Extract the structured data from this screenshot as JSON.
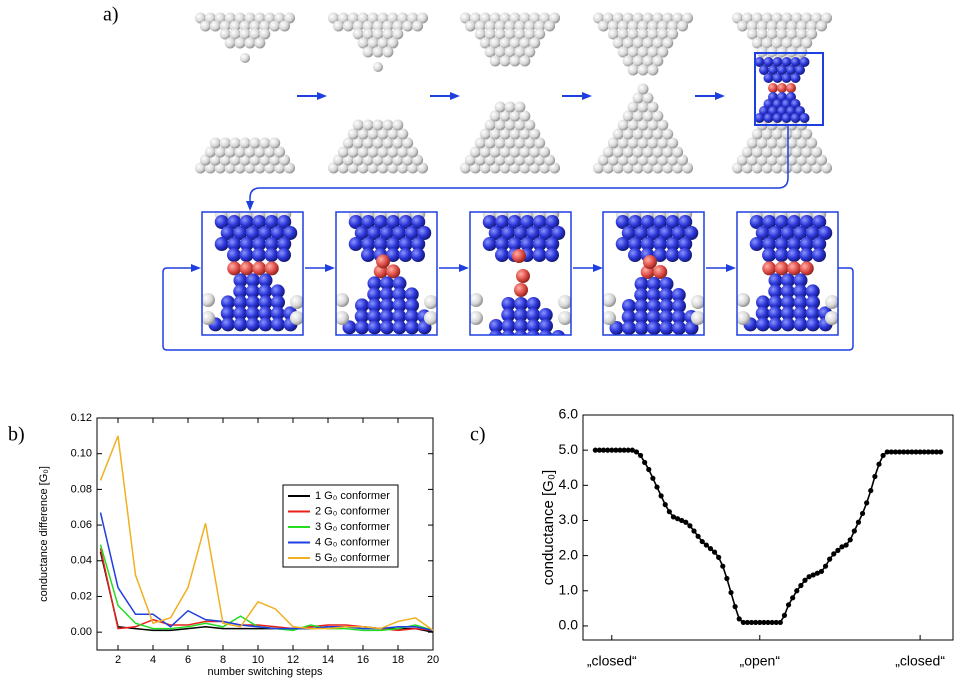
{
  "panel_labels": [
    "a)",
    "b)",
    "c)"
  ],
  "chart_data": [
    {
      "type": "line",
      "xlabel": "number switching steps",
      "ylabel": "conductance difference [G₀]",
      "x": [
        1,
        2,
        3,
        4,
        5,
        6,
        7,
        8,
        9,
        10,
        11,
        12,
        13,
        14,
        15,
        16,
        17,
        18,
        19,
        20
      ],
      "xlim": [
        0.8,
        20
      ],
      "xticks": [
        2,
        4,
        6,
        8,
        10,
        12,
        14,
        16,
        18,
        20
      ],
      "ylim": [
        -0.01,
        0.12
      ],
      "yticks": [
        {
          "value": 0,
          "label": "0.00"
        },
        {
          "value": 0.02,
          "label": "0.02"
        },
        {
          "value": 0.04,
          "label": "0.04"
        },
        {
          "value": 0.06,
          "label": "0.06"
        },
        {
          "value": 0.08,
          "label": "0.08"
        },
        {
          "value": 0.1,
          "label": "0.10"
        },
        {
          "value": 0.12,
          "label": "0.12"
        }
      ],
      "legend": "upper right",
      "series": [
        {
          "name": "1 G₀ conformer",
          "color": "#000000",
          "values": [
            0.045,
            0.003,
            0.002,
            0.001,
            0.001,
            0.002,
            0.003,
            0.002,
            0.002,
            0.002,
            0.002,
            0.002,
            0.002,
            0.003,
            0.003,
            0.003,
            0.002,
            0.002,
            0.002,
            0.0
          ]
        },
        {
          "name": "2 G₀ conformer",
          "color": "#e8201a",
          "values": [
            0.047,
            0.002,
            0.003,
            0.007,
            0.004,
            0.004,
            0.006,
            0.006,
            0.004,
            0.004,
            0.003,
            0.002,
            0.003,
            0.004,
            0.004,
            0.003,
            0.002,
            0.001,
            0.002,
            0.001
          ]
        },
        {
          "name": "3 G₀ conformer",
          "color": "#22dd22",
          "values": [
            0.049,
            0.015,
            0.005,
            0.002,
            0.002,
            0.003,
            0.005,
            0.003,
            0.009,
            0.003,
            0.002,
            0.001,
            0.004,
            0.002,
            0.002,
            0.001,
            0.001,
            0.002,
            0.004,
            0.001
          ]
        },
        {
          "name": "4 G₀ conformer",
          "color": "#1f3fe0",
          "values": [
            0.067,
            0.025,
            0.01,
            0.01,
            0.003,
            0.012,
            0.007,
            0.006,
            0.004,
            0.003,
            0.002,
            0.002,
            0.002,
            0.003,
            0.003,
            0.002,
            0.002,
            0.003,
            0.003,
            0.001
          ]
        },
        {
          "name": "5 G₀ conformer",
          "color": "#f0b020",
          "values": [
            0.085,
            0.11,
            0.032,
            0.005,
            0.008,
            0.025,
            0.061,
            0.005,
            0.003,
            0.017,
            0.013,
            0.003,
            0.002,
            0.002,
            0.003,
            0.003,
            0.002,
            0.006,
            0.008,
            0.001
          ]
        }
      ]
    },
    {
      "type": "line",
      "ylabel": "conductance [G₀]",
      "markers": true,
      "color": "#000000",
      "xlim": [
        -3,
        87
      ],
      "xticks": [
        {
          "value": 4,
          "label": "„closed“"
        },
        {
          "value": 40,
          "label": "„open“"
        },
        {
          "value": 79,
          "label": "„closed“"
        }
      ],
      "ylim": [
        -0.4,
        6
      ],
      "yticks": [
        {
          "value": 0,
          "label": "0.0"
        },
        {
          "value": 1,
          "label": "1.0"
        },
        {
          "value": 2,
          "label": "2.0"
        },
        {
          "value": 3,
          "label": "3.0"
        },
        {
          "value": 4,
          "label": "4.0"
        },
        {
          "value": 5,
          "label": "5.0"
        },
        {
          "value": 6,
          "label": "6.0"
        }
      ],
      "values": [
        5.0,
        5.0,
        5.0,
        5.0,
        5.0,
        5.0,
        5.0,
        5.0,
        5.0,
        5.0,
        4.95,
        4.85,
        4.65,
        4.45,
        4.2,
        3.95,
        3.7,
        3.45,
        3.25,
        3.1,
        3.05,
        3.0,
        2.95,
        2.85,
        2.7,
        2.55,
        2.4,
        2.3,
        2.2,
        2.1,
        1.95,
        1.7,
        1.35,
        0.95,
        0.55,
        0.2,
        0.1,
        0.1,
        0.1,
        0.1,
        0.1,
        0.1,
        0.1,
        0.1,
        0.1,
        0.1,
        0.3,
        0.6,
        0.8,
        1.0,
        1.15,
        1.3,
        1.4,
        1.45,
        1.5,
        1.55,
        1.7,
        1.9,
        2.05,
        2.15,
        2.25,
        2.3,
        2.45,
        2.7,
        2.95,
        3.2,
        3.5,
        3.85,
        4.25,
        4.6,
        4.85,
        4.95,
        4.95,
        4.95,
        4.95,
        4.95,
        4.95,
        4.95,
        4.95,
        4.95,
        4.95,
        4.95,
        4.95,
        4.95,
        4.95
      ]
    }
  ]
}
